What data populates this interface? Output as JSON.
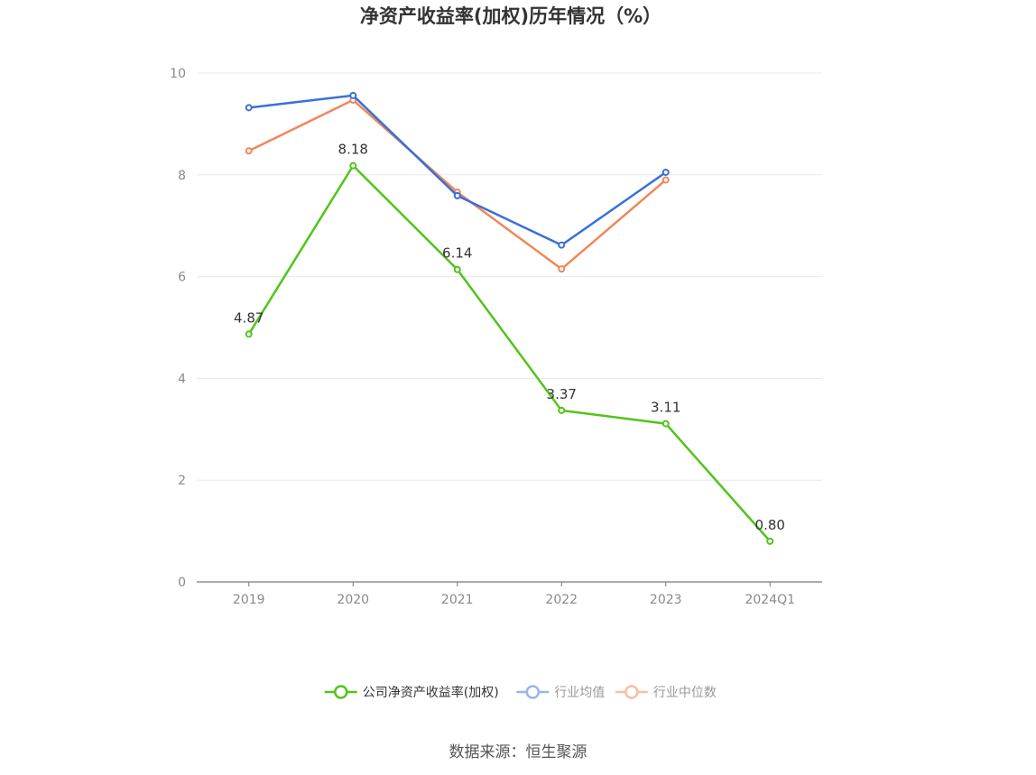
{
  "chart_data": {
    "type": "line",
    "title": "净资产收益率(加权)历年情况（%）",
    "categories": [
      "2019",
      "2020",
      "2021",
      "2022",
      "2023",
      "2024Q1"
    ],
    "ylim": [
      0,
      10
    ],
    "yticks": [
      "0",
      "2",
      "4",
      "6",
      "8",
      "10"
    ],
    "grid": true,
    "legend_position": "bottom-center",
    "series": [
      {
        "name": "公司净资产收益率(加权)",
        "color": "#52c41a",
        "values": [
          4.87,
          8.18,
          6.14,
          3.37,
          3.11,
          0.8
        ],
        "labels": [
          "4.87",
          "8.18",
          "6.14",
          "3.37",
          "3.11",
          "0.80"
        ],
        "show_labels": true
      },
      {
        "name": "行业均值",
        "color": "#3a6fd8",
        "values": [
          9.32,
          9.56,
          7.59,
          6.62,
          8.05,
          null
        ],
        "show_labels": false
      },
      {
        "name": "行业中位数",
        "color": "#f0875a",
        "values": [
          8.47,
          9.47,
          7.66,
          6.15,
          7.9,
          null
        ],
        "show_labels": false
      }
    ]
  },
  "legend_colors_faded": {
    "行业均值": "#9bb6ea",
    "行业中位数": "#f6bfa6"
  },
  "source": "数据来源：恒生聚源"
}
